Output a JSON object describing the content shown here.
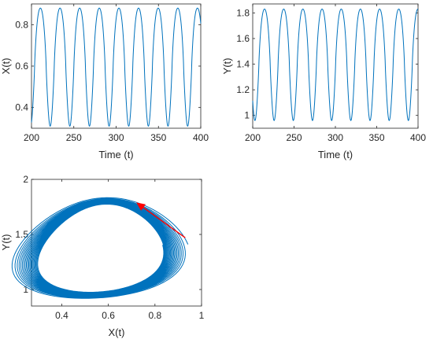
{
  "colors": {
    "series": "#0072BD",
    "arrow": "#FF0000",
    "axis": "#262626"
  },
  "chart_data": [
    {
      "id": "x-vs-time",
      "type": "line",
      "xlabel": "Time (t)",
      "ylabel": "X(t)",
      "xlim": [
        200,
        400
      ],
      "ylim": [
        0.3,
        0.9
      ],
      "xticks": [
        200,
        250,
        300,
        350,
        400
      ],
      "yticks": [
        0.4,
        0.6,
        0.8
      ],
      "xtick_labels": [
        "200",
        "250",
        "300",
        "350",
        "400"
      ],
      "ytick_labels": [
        "0.4",
        "0.6",
        "0.8"
      ],
      "series": [
        {
          "oscillation": {
            "t_start": 200,
            "t_end": 400,
            "period": 23.2,
            "min": 0.31,
            "max": 0.88,
            "first_peak_t": 210.5
          }
        }
      ]
    },
    {
      "id": "y-vs-time",
      "type": "line",
      "xlabel": "Time (t)",
      "ylabel": "Y(t)",
      "xlim": [
        200,
        400
      ],
      "ylim": [
        0.9,
        1.87
      ],
      "xticks": [
        200,
        250,
        300,
        350,
        400
      ],
      "yticks": [
        1,
        1.2,
        1.4,
        1.6,
        1.8
      ],
      "xtick_labels": [
        "200",
        "250",
        "300",
        "350",
        "400"
      ],
      "ytick_labels": [
        "1",
        "1.2",
        "1.4",
        "1.6",
        "1.8"
      ],
      "series": [
        {
          "oscillation": {
            "t_start": 200,
            "t_end": 400,
            "period": 23.2,
            "min": 0.96,
            "max": 1.83,
            "first_peak_t": 214.3
          }
        }
      ]
    },
    {
      "id": "phase-portrait",
      "type": "line",
      "xlabel": "X(t)",
      "ylabel": "Y(t)",
      "xlim": [
        0.27,
        1.0
      ],
      "ylim": [
        0.85,
        2.0
      ],
      "xticks": [
        0.4,
        0.6,
        0.8,
        1.0
      ],
      "yticks": [
        1,
        1.5,
        2
      ],
      "xtick_labels": [
        "0.4",
        "0.6",
        "0.8",
        "1"
      ],
      "ytick_labels": [
        "1",
        "1.5",
        "2"
      ],
      "series": [
        {
          "spiral_orbit": {
            "x_center": 0.585,
            "y_center": 1.375,
            "x_radius_start": 0.41,
            "x_radius_end": 0.285,
            "y_radius_start": 0.5,
            "y_radius_end": 0.43,
            "turns": 20
          }
        }
      ],
      "annotations": [
        {
          "type": "arrow",
          "from": [
            0.93,
            1.47
          ],
          "to": [
            0.72,
            1.79
          ],
          "color": "#FF0000"
        }
      ]
    }
  ]
}
